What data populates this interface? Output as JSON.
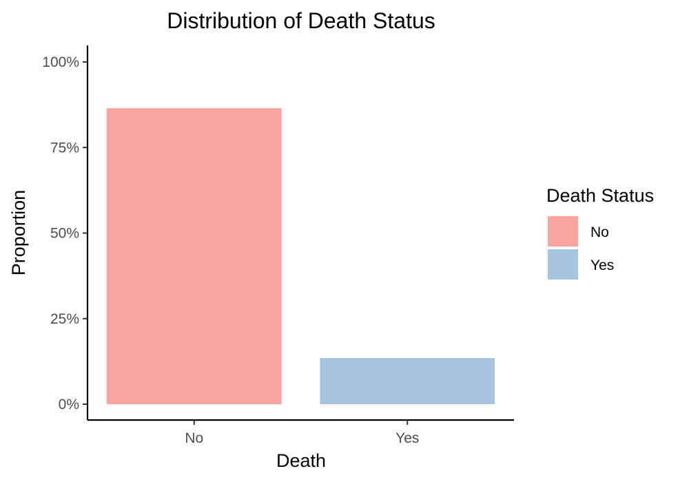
{
  "chart_data": {
    "type": "bar",
    "title": "Distribution of Death Status",
    "xlabel": "Death",
    "ylabel": "Proportion",
    "categories": [
      "No",
      "Yes"
    ],
    "values": [
      0.865,
      0.135
    ],
    "ylim": [
      0,
      1
    ],
    "yticks": [
      {
        "value": 0,
        "label": "0%"
      },
      {
        "value": 0.25,
        "label": "25%"
      },
      {
        "value": 0.5,
        "label": "50%"
      },
      {
        "value": 0.75,
        "label": "75%"
      },
      {
        "value": 1,
        "label": "100%"
      }
    ],
    "colors": [
      "#f8a5a0",
      "#a8c3dd"
    ],
    "grid": false,
    "legend": {
      "title": "Death Status",
      "placement": "right",
      "entries": [
        {
          "label": "No",
          "color": "#f8a5a0"
        },
        {
          "label": "Yes",
          "color": "#a8c3dd"
        }
      ]
    }
  }
}
